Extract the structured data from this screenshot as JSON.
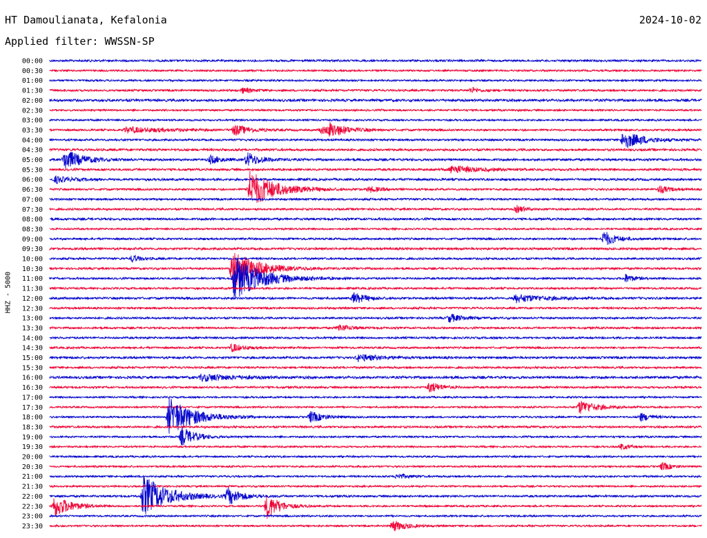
{
  "header": {
    "station": "HT Damoulianata, Kefalonia",
    "date": "2024-10-02",
    "filter": "Applied filter: WWSSN-SP"
  },
  "chart_data": {
    "type": "line",
    "title": "HT Damoulianata, Kefalonia",
    "subtitle": "Applied filter: WWSSN-SP",
    "ylabel": "HHZ - 5000",
    "xlabel": "",
    "rows": [
      "00:00",
      "00:30",
      "01:00",
      "01:30",
      "02:00",
      "02:30",
      "03:00",
      "03:30",
      "04:00",
      "04:30",
      "05:00",
      "05:30",
      "06:00",
      "06:30",
      "07:00",
      "07:30",
      "08:00",
      "08:30",
      "09:00",
      "09:30",
      "10:00",
      "10:30",
      "11:00",
      "11:30",
      "12:00",
      "12:30",
      "13:00",
      "13:30",
      "14:00",
      "14:30",
      "15:00",
      "15:30",
      "16:00",
      "16:30",
      "17:00",
      "17:30",
      "18:00",
      "18:30",
      "19:00",
      "19:30",
      "20:00",
      "20:30",
      "21:00",
      "21:30",
      "22:00",
      "22:30",
      "23:00",
      "23:30"
    ],
    "row_minutes": 30,
    "colors": [
      "#0000cc",
      "#ee0033"
    ],
    "noise": [
      1.4,
      1.2,
      1.2,
      1.4,
      1.8,
      1.2,
      1.2,
      1.4,
      1.4,
      1.6,
      1.6,
      1.6,
      1.6,
      1.4,
      1.4,
      1.4,
      1.6,
      1.2,
      1.4,
      1.6,
      1.4,
      1.4,
      1.4,
      1.4,
      1.6,
      1.4,
      1.4,
      1.4,
      1.4,
      1.4,
      1.6,
      1.4,
      1.8,
      1.4,
      1.2,
      1.2,
      1.2,
      1.4,
      1.2,
      1.2,
      1.2,
      1.2,
      1.2,
      1.2,
      1.4,
      1.2,
      1.2,
      1.2
    ],
    "events": [
      {
        "row": 3,
        "minute": 8.9,
        "amp": 4,
        "dur": 0.8
      },
      {
        "row": 3,
        "minute": 19.4,
        "amp": 4,
        "dur": 0.8
      },
      {
        "row": 7,
        "minute": 3.5,
        "amp": 4,
        "dur": 4
      },
      {
        "row": 7,
        "minute": 8.5,
        "amp": 8,
        "dur": 1.2
      },
      {
        "row": 7,
        "minute": 12.5,
        "amp": 5,
        "dur": 1.5
      },
      {
        "row": 7,
        "minute": 12.9,
        "amp": 8,
        "dur": 1.5
      },
      {
        "row": 8,
        "minute": 26.4,
        "amp": 13,
        "dur": 1.8
      },
      {
        "row": 10,
        "minute": 0.7,
        "amp": 15,
        "dur": 1.5
      },
      {
        "row": 10,
        "minute": 7.4,
        "amp": 6,
        "dur": 1
      },
      {
        "row": 10,
        "minute": 9.1,
        "amp": 10,
        "dur": 1.2
      },
      {
        "row": 11,
        "minute": 18.5,
        "amp": 6,
        "dur": 2
      },
      {
        "row": 12,
        "minute": 0.3,
        "amp": 5,
        "dur": 1.2
      },
      {
        "row": 13,
        "minute": 9.2,
        "amp": 28,
        "dur": 2.2
      },
      {
        "row": 13,
        "minute": 14.7,
        "amp": 4,
        "dur": 1
      },
      {
        "row": 13,
        "minute": 28.1,
        "amp": 6,
        "dur": 0.8
      },
      {
        "row": 15,
        "minute": 21.5,
        "amp": 5,
        "dur": 0.8
      },
      {
        "row": 18,
        "minute": 25.5,
        "amp": 12,
        "dur": 1
      },
      {
        "row": 20,
        "minute": 3.8,
        "amp": 5,
        "dur": 0.8
      },
      {
        "row": 21,
        "minute": 8.4,
        "amp": 28,
        "dur": 2.2
      },
      {
        "row": 22,
        "minute": 8.5,
        "amp": 32,
        "dur": 2.4
      },
      {
        "row": 22,
        "minute": 26.5,
        "amp": 6,
        "dur": 0.8
      },
      {
        "row": 24,
        "minute": 14,
        "amp": 8,
        "dur": 1
      },
      {
        "row": 24,
        "minute": 21.4,
        "amp": 6,
        "dur": 2.5
      },
      {
        "row": 26,
        "minute": 18.4,
        "amp": 6,
        "dur": 1.2
      },
      {
        "row": 27,
        "minute": 13.3,
        "amp": 5,
        "dur": 1.2
      },
      {
        "row": 29,
        "minute": 8.4,
        "amp": 6,
        "dur": 1
      },
      {
        "row": 30,
        "minute": 14.2,
        "amp": 5,
        "dur": 2
      },
      {
        "row": 32,
        "minute": 7,
        "amp": 5,
        "dur": 3
      },
      {
        "row": 33,
        "minute": 17.5,
        "amp": 8,
        "dur": 1
      },
      {
        "row": 35,
        "minute": 24.4,
        "amp": 10,
        "dur": 1.5
      },
      {
        "row": 36,
        "minute": 5.5,
        "amp": 28,
        "dur": 2.2
      },
      {
        "row": 36,
        "minute": 12,
        "amp": 8,
        "dur": 1.2
      },
      {
        "row": 36,
        "minute": 27.2,
        "amp": 6,
        "dur": 1
      },
      {
        "row": 38,
        "minute": 6.1,
        "amp": 14,
        "dur": 1.2
      },
      {
        "row": 39,
        "minute": 26.3,
        "amp": 4,
        "dur": 0.8
      },
      {
        "row": 41,
        "minute": 28.2,
        "amp": 6,
        "dur": 0.8
      },
      {
        "row": 42,
        "minute": 16,
        "amp": 4,
        "dur": 1
      },
      {
        "row": 44,
        "minute": 4.3,
        "amp": 30,
        "dur": 2.2
      },
      {
        "row": 44,
        "minute": 8.2,
        "amp": 12,
        "dur": 1.2
      },
      {
        "row": 45,
        "minute": 0.2,
        "amp": 16,
        "dur": 1.5
      },
      {
        "row": 45,
        "minute": 10,
        "amp": 18,
        "dur": 1.2
      },
      {
        "row": 47,
        "minute": 15.8,
        "amp": 8,
        "dur": 1.2
      }
    ]
  }
}
